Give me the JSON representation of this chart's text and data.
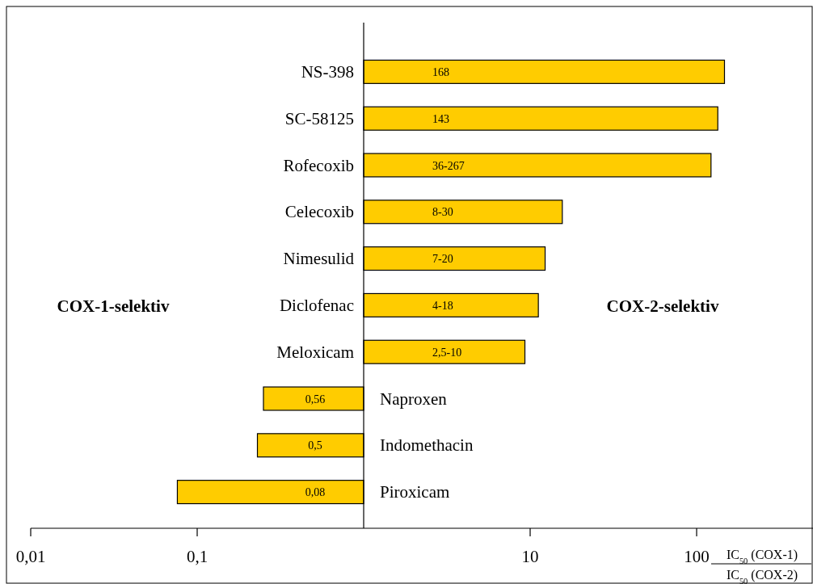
{
  "chart_data": {
    "type": "bar",
    "orientation": "horizontal",
    "log": "x",
    "categories": [
      "NS-398",
      "SC-58125",
      "Rofecoxib",
      "Celecoxib",
      "Nimesulid",
      "Diclofenac",
      "Meloxicam",
      "Naproxen",
      "Indomethacin",
      "Piroxicam"
    ],
    "base": [
      1,
      1,
      1,
      1,
      1,
      1,
      1,
      1,
      1,
      1
    ],
    "values": [
      146,
      133,
      121,
      14.6,
      11.3,
      10.2,
      8.3,
      -0.75,
      -0.77,
      -0.924
    ],
    "color": "#ffcc00",
    "xlim": [
      0.01,
      500
    ],
    "xticks": [
      {
        "value": 0.01,
        "label": "0,01"
      },
      {
        "value": 0.1,
        "label": "0,1"
      },
      10,
      100
    ],
    "xlabel": "IC$_{50}$ (COX-1)\nIC$_{50}$ (COX-2)",
    "annotations": [
      "COX-1-selektiv",
      "COX-2-selektiv",
      "168",
      "143",
      "36-267",
      "8-30",
      "7-20",
      "4-18",
      "2,5-10",
      "0,56",
      "0,5",
      "0,08"
    ],
    "grid": false
  }
}
